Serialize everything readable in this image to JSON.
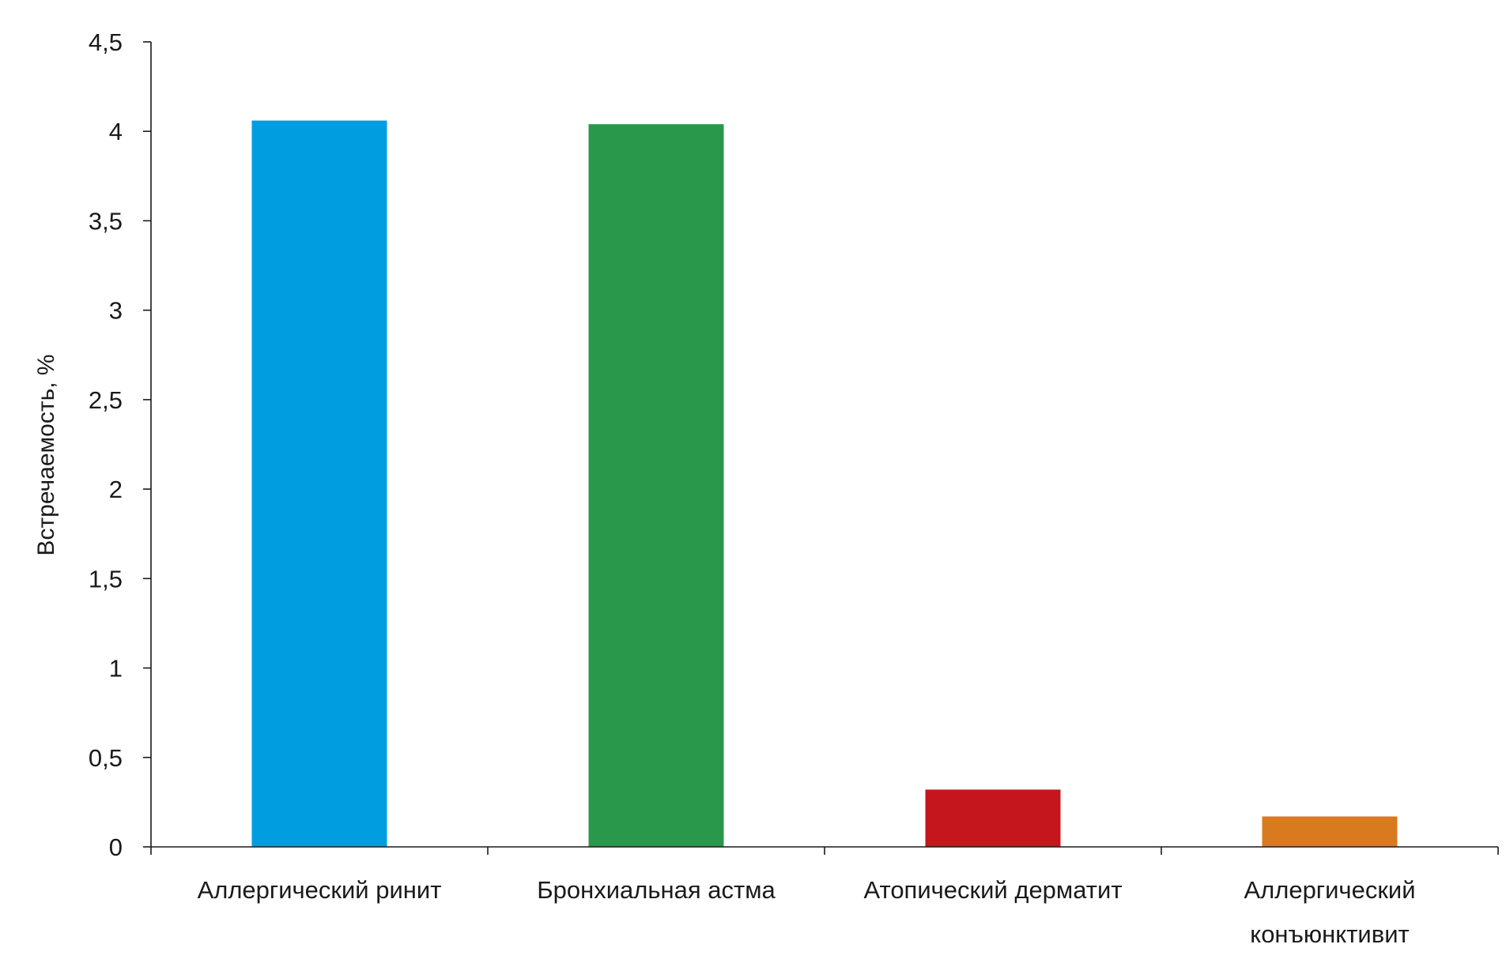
{
  "chart_data": {
    "type": "bar",
    "title": "",
    "xlabel": "",
    "ylabel": "Встречаемость, %",
    "ylim": [
      0,
      4.5
    ],
    "yticks": [
      0,
      0.5,
      1,
      1.5,
      2,
      2.5,
      3,
      3.5,
      4,
      4.5
    ],
    "ytick_labels": [
      "0",
      "0,5",
      "1",
      "1,5",
      "2",
      "2,5",
      "3",
      "3,5",
      "4",
      "4,5"
    ],
    "categories": [
      [
        "Аллергический ринит"
      ],
      [
        "Бронхиальная астма"
      ],
      [
        "Атопический дерматит"
      ],
      [
        "Аллергический",
        "конъюнктивит"
      ]
    ],
    "values": [
      4.06,
      4.04,
      0.32,
      0.17
    ],
    "colors": [
      "#009ee0",
      "#2a984b",
      "#c4161c",
      "#d97a1f"
    ],
    "grid": false,
    "legend": "none"
  }
}
